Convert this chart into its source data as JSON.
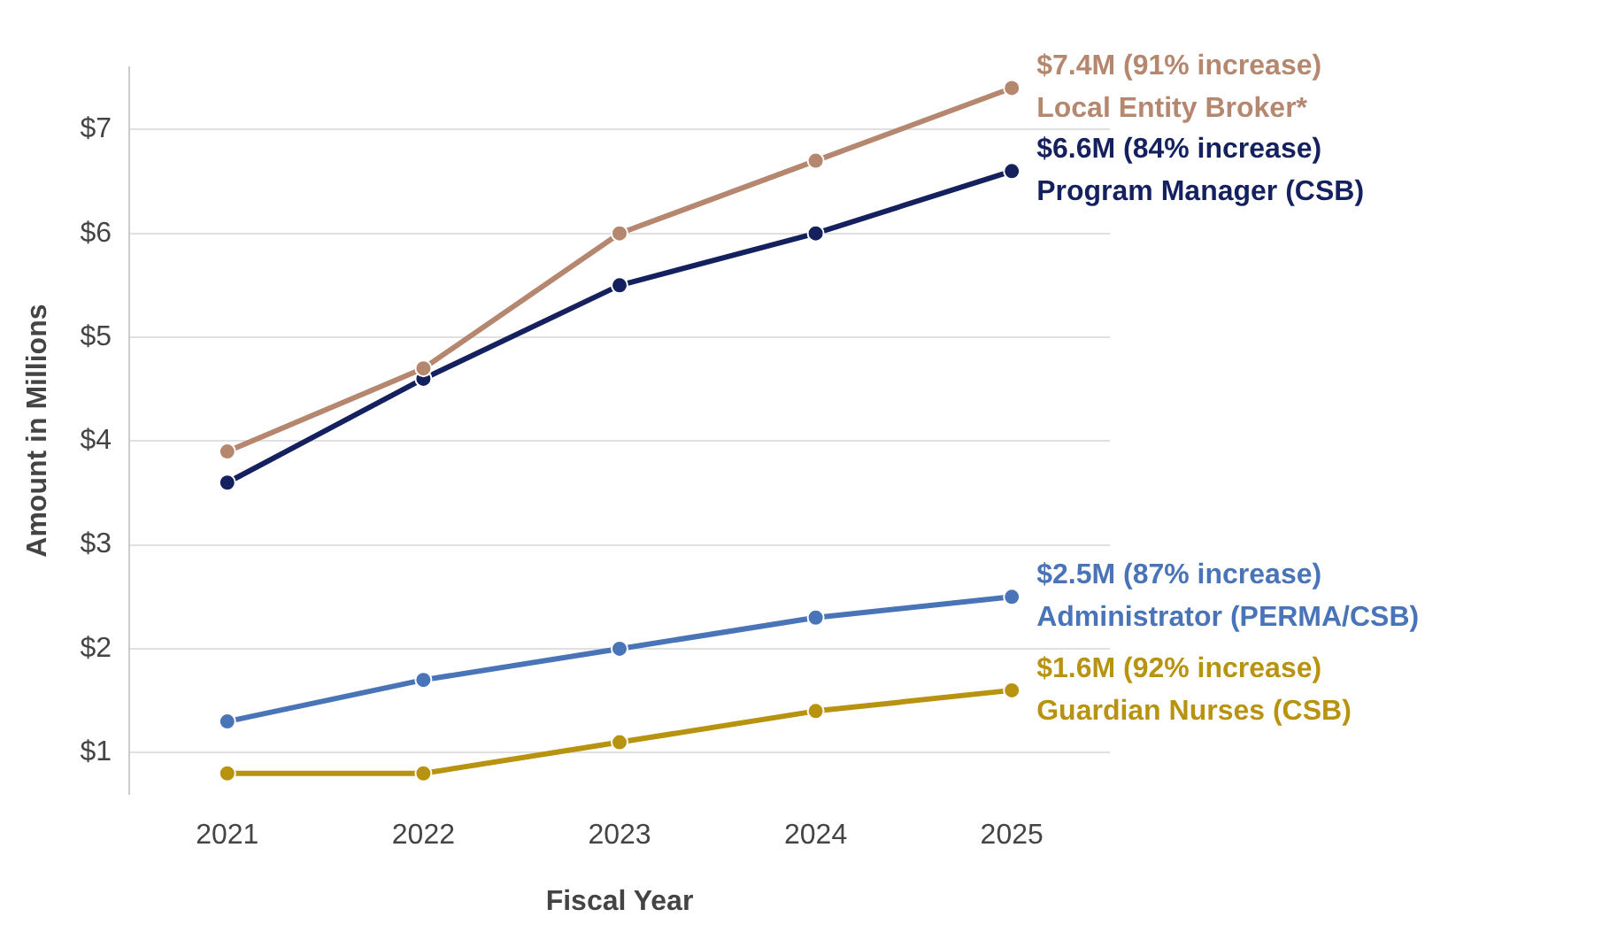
{
  "chart_data": {
    "type": "line",
    "xlabel": "Fiscal Year",
    "ylabel": "Amount in Millions",
    "categories": [
      "2021",
      "2022",
      "2023",
      "2024",
      "2025"
    ],
    "series": [
      {
        "name": "Local Entity Broker*",
        "color": "#b5876e",
        "values": [
          3.9,
          4.7,
          6.0,
          6.7,
          7.4
        ]
      },
      {
        "name": "Program Manager (CSB)",
        "color": "#14215e",
        "values": [
          3.6,
          4.6,
          5.5,
          6.0,
          6.6
        ]
      },
      {
        "name": "Administrator (PERMA/CSB)",
        "color": "#4a74b8",
        "values": [
          1.3,
          1.7,
          2.0,
          2.3,
          2.5
        ]
      },
      {
        "name": "Guardian Nurses (CSB)",
        "color": "#b8930f",
        "values": [
          0.8,
          0.8,
          1.1,
          1.4,
          1.6
        ]
      }
    ],
    "annotations": [
      {
        "text": "$7.4M (91% increase)",
        "x": "2025",
        "y": 7.4
      },
      {
        "text": "$6.6M (84% increase)",
        "x": "2025",
        "y": 6.6
      },
      {
        "text": "$2.5M (87% increase)",
        "x": "2025",
        "y": 2.5
      },
      {
        "text": "$1.6M (92% increase)",
        "x": "2025",
        "y": 1.6
      }
    ],
    "ylim": [
      0.6,
      7.6
    ],
    "yticks": [
      {
        "value": 1,
        "label": "$1"
      },
      {
        "value": 2,
        "label": "$2"
      },
      {
        "value": 3,
        "label": "$3"
      },
      {
        "value": 4,
        "label": "$4"
      },
      {
        "value": 5,
        "label": "$5"
      },
      {
        "value": 6,
        "label": "$6"
      },
      {
        "value": 7,
        "label": "$7"
      }
    ],
    "grid": "y",
    "legend": false,
    "marker": "circle",
    "line_style": "solid"
  }
}
